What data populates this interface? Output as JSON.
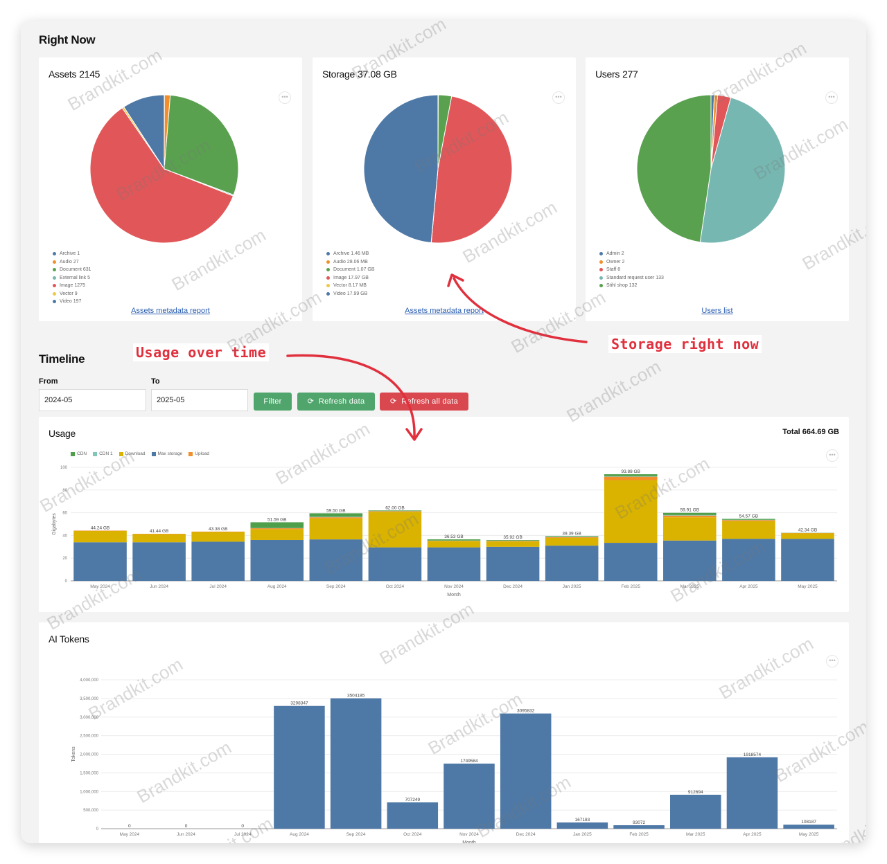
{
  "right_now": {
    "title": "Right Now",
    "assets": {
      "label": "Assets",
      "value": "2145",
      "legend": [
        {
          "text": "Archive 1",
          "color": "#4e79a7"
        },
        {
          "text": "Audio 27",
          "color": "#f28e2b"
        },
        {
          "text": "Document 631",
          "color": "#59a14f"
        },
        {
          "text": "External link 5",
          "color": "#76b7b2"
        },
        {
          "text": "Image 1275",
          "color": "#e15759"
        },
        {
          "text": "Vector 9",
          "color": "#edc948"
        },
        {
          "text": "Video 197",
          "color": "#4e79a7"
        }
      ],
      "link": "Assets metadata report"
    },
    "storage": {
      "label": "Storage",
      "value": "37.08 GB",
      "legend": [
        {
          "text": "Archive 1.46 MB",
          "color": "#4e79a7"
        },
        {
          "text": "Audio 28.06 MB",
          "color": "#f28e2b"
        },
        {
          "text": "Document 1.07 GB",
          "color": "#59a14f"
        },
        {
          "text": "Image 17.97 GB",
          "color": "#e15759"
        },
        {
          "text": "Vector 8.17 MB",
          "color": "#edc948"
        },
        {
          "text": "Video 17.99 GB",
          "color": "#4e79a7"
        }
      ],
      "link": "Assets metadata report"
    },
    "users": {
      "label": "Users",
      "value": "277",
      "legend": [
        {
          "text": "Admin 2",
          "color": "#4e79a7"
        },
        {
          "text": "Owner 2",
          "color": "#f28e2b"
        },
        {
          "text": "Staff 8",
          "color": "#e15759"
        },
        {
          "text": "Standard request user 133",
          "color": "#76b7b2"
        },
        {
          "text": "Stihl shop 132",
          "color": "#59a14f"
        }
      ],
      "link": "Users list"
    }
  },
  "timeline": {
    "title": "Timeline",
    "from_label": "From",
    "from_value": "2024-05",
    "to_label": "To",
    "to_value": "2025-05",
    "filter_label": "Filter",
    "refresh_label": "Refresh data",
    "refresh_all_label": "Refresh all data"
  },
  "annotations": {
    "usage": "Usage over time",
    "storage": "Storage right now"
  },
  "usage_card": {
    "title": "Usage",
    "total": "Total 664.69 GB"
  },
  "tokens_card": {
    "title": "AI Tokens"
  },
  "watermark": "Brandkit.com",
  "colors": {
    "blue": "#4e79a7",
    "orange": "#f28e2b",
    "green": "#59a14f",
    "red": "#e15759",
    "teal": "#76b7b2",
    "yellow": "#edc948",
    "usage_yellow": "#d9b300",
    "usage_green": "#4e9e4a",
    "usage_teal": "#7fc7b9"
  },
  "chart_data": [
    {
      "type": "pie",
      "title": "Assets 2145",
      "labels": [
        "Archive",
        "Audio",
        "Document",
        "External link",
        "Image",
        "Vector",
        "Video"
      ],
      "values": [
        1,
        27,
        631,
        5,
        1275,
        9,
        197
      ]
    },
    {
      "type": "pie",
      "title": "Storage 37.08 GB",
      "labels": [
        "Archive",
        "Audio",
        "Document",
        "Image",
        "Vector",
        "Video"
      ],
      "values": [
        0.00146,
        0.02806,
        1.07,
        17.97,
        0.00817,
        17.99
      ],
      "unit": "GB"
    },
    {
      "type": "pie",
      "title": "Users 277",
      "labels": [
        "Admin",
        "Owner",
        "Staff",
        "Standard request user",
        "Stihl shop"
      ],
      "values": [
        2,
        2,
        8,
        133,
        132
      ]
    },
    {
      "type": "bar",
      "title": "Usage",
      "stacked": true,
      "xlabel": "Month",
      "ylabel": "Gigabytes",
      "ylim": [
        0,
        100
      ],
      "yticks": [
        0,
        20,
        40,
        60,
        80,
        100
      ],
      "categories": [
        "May 2024",
        "Jun 2024",
        "Jul 2024",
        "Aug 2024",
        "Sep 2024",
        "Oct 2024",
        "Nov 2024",
        "Dec 2024",
        "Jan 2025",
        "Feb 2025",
        "Mar 2025",
        "Apr 2025",
        "May 2025"
      ],
      "series": [
        {
          "name": "Max storage",
          "values": [
            34,
            34,
            34.5,
            36,
            36.5,
            29.5,
            29.5,
            30,
            31,
            33.5,
            35.5,
            37,
            37
          ]
        },
        {
          "name": "Download",
          "values": [
            9.9,
            7.1,
            8.5,
            9.5,
            18.5,
            31.3,
            5.5,
            4.7,
            6.9,
            55.2,
            20.5,
            15.5,
            4.8
          ]
        },
        {
          "name": "Upload",
          "values": [
            0.34,
            0.34,
            0.38,
            0.8,
            1.0,
            0.5,
            0.3,
            0.5,
            0.6,
            3.0,
            1.5,
            1.0,
            0.3
          ]
        },
        {
          "name": "CDN 1",
          "values": [
            0,
            0,
            0,
            0.3,
            0.5,
            0.2,
            0.2,
            0.2,
            0.2,
            0.5,
            0.5,
            0.3,
            0.1
          ]
        },
        {
          "name": "CDN",
          "values": [
            0,
            0,
            0,
            4.99,
            3.0,
            0.5,
            1.03,
            0.52,
            0.69,
            1.68,
            1.91,
            0.77,
            0.14
          ]
        }
      ],
      "data_labels": [
        "44.24 GB",
        "41.44 GB",
        "43.38 GB",
        "51.59 GB",
        "59.50 GB",
        "62.00 GB",
        "36.53 GB",
        "35.92 GB",
        "39.39 GB",
        "93.88 GB",
        "59.91 GB",
        "54.57 GB",
        "42.34 GB"
      ]
    },
    {
      "type": "bar",
      "title": "AI Tokens",
      "xlabel": "Month",
      "ylabel": "Tokens",
      "ylim": [
        0,
        4000000
      ],
      "yticks": [
        0,
        500000,
        1000000,
        1500000,
        2000000,
        2500000,
        3000000,
        3500000,
        4000000
      ],
      "ytick_labels": [
        "0",
        "500,000",
        "1,000,000",
        "1,500,000",
        "2,000,000",
        "2,500,000",
        "3,000,000",
        "3,500,000",
        "4,000,000"
      ],
      "categories": [
        "May 2024",
        "Jun 2024",
        "Jul 2024",
        "Aug 2024",
        "Sep 2024",
        "Oct 2024",
        "Nov 2024",
        "Dec 2024",
        "Jan 2025",
        "Feb 2025",
        "Mar 2025",
        "Apr 2025",
        "May 2025"
      ],
      "values": [
        0,
        0,
        0,
        3298347,
        3504185,
        707249,
        1749584,
        3095832,
        167183,
        93072,
        912694,
        1918574,
        108187
      ]
    }
  ]
}
